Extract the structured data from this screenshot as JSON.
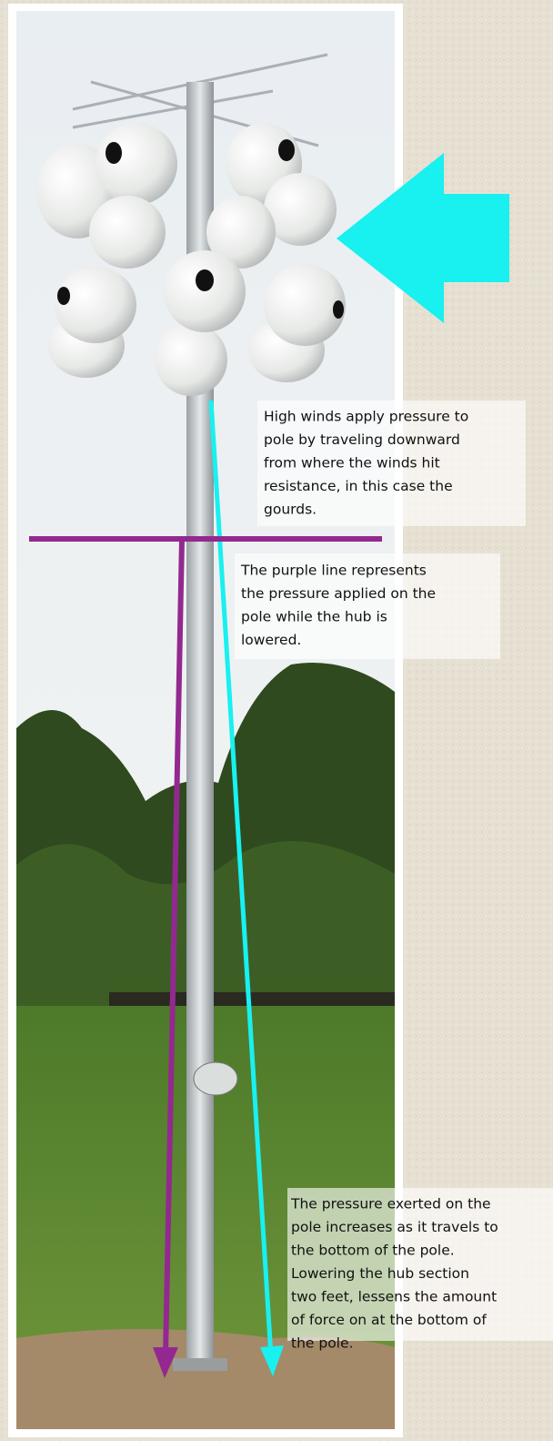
{
  "annotations": [
    {
      "lines": [
        "High winds apply pressure to",
        "pole by traveling downward",
        "from where the winds hit",
        "resistance, in this case the",
        "gourds."
      ]
    },
    {
      "lines": [
        "The purple line represents",
        "the pressure applied on the",
        "pole while the hub is",
        "lowered."
      ]
    },
    {
      "lines": [
        "The pressure exerted on the",
        "pole increases as it travels to",
        "the bottom of the pole.",
        "Lowering the hub section",
        "two feet, lessens the amount",
        "of force on at the bottom of",
        "the pole."
      ]
    }
  ]
}
